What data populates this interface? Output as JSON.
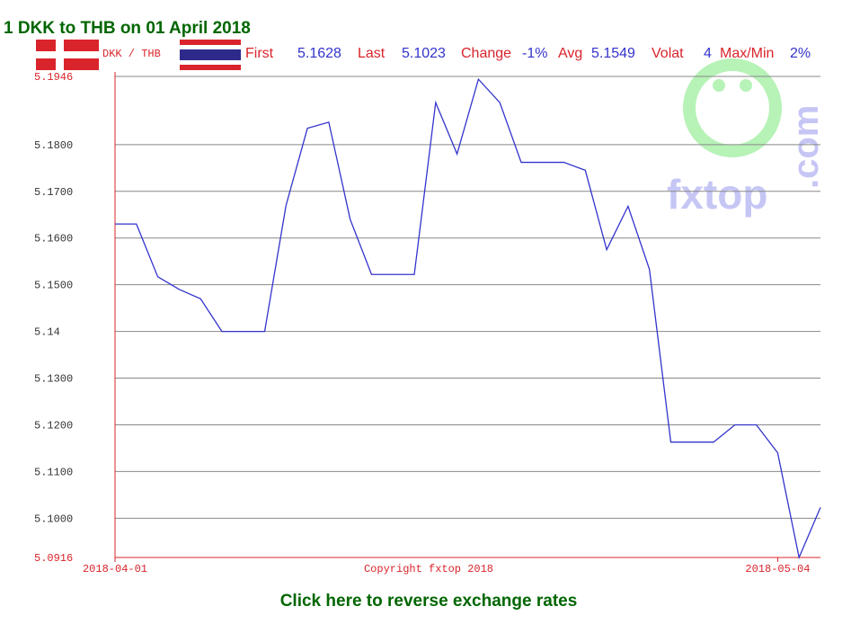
{
  "chart_data": {
    "type": "line",
    "title": "1 DKK to THB on 01 April 2018",
    "pair": "DKK / THB",
    "stats": [
      {
        "label": "First",
        "value": "5.1628"
      },
      {
        "label": "Last",
        "value": "5.1023"
      },
      {
        "label": "Change",
        "value": "-1%"
      },
      {
        "label": "Avg",
        "value": "5.1549"
      },
      {
        "label": "Volat",
        "value": "4"
      },
      {
        "label": "Max/Min",
        "value": "2%"
      }
    ],
    "categories": [
      "2018-04-01",
      null,
      null,
      null,
      null,
      null,
      null,
      null,
      null,
      null,
      null,
      null,
      null,
      null,
      null,
      null,
      null,
      null,
      null,
      null,
      null,
      null,
      null,
      null,
      null,
      null,
      null,
      null,
      null,
      null,
      null,
      "2018-05-04",
      null,
      null
    ],
    "series": [
      {
        "name": "DKK / THB",
        "color": "#3333cc",
        "values": [
          5.163,
          5.163,
          5.1517,
          5.149,
          5.147,
          5.14,
          5.14,
          5.14,
          5.167,
          5.1835,
          5.1848,
          5.164,
          5.1522,
          5.1522,
          5.1522,
          5.189,
          5.178,
          5.194,
          5.189,
          5.1762,
          5.1762,
          5.1762,
          5.1745,
          5.1575,
          5.1668,
          5.1533,
          5.1163,
          5.1163,
          5.1163,
          5.12,
          5.12,
          5.114,
          5.0916,
          5.1023
        ]
      }
    ],
    "ylim": [
      5.0916,
      5.1946
    ],
    "yticks": [
      5.0916,
      {
        "value": 5.1,
        "label": "5.1000"
      },
      {
        "value": 5.11,
        "label": "5.1100"
      },
      {
        "value": 5.12,
        "label": "5.1200"
      },
      {
        "value": 5.13,
        "label": "5.1300"
      },
      5.14,
      {
        "value": 5.15,
        "label": "5.1500"
      },
      {
        "value": 5.16,
        "label": "5.1600"
      },
      {
        "value": 5.17,
        "label": "5.1700"
      },
      {
        "value": 5.18,
        "label": "5.1800"
      },
      5.1946
    ],
    "grid": true,
    "copyright": "Copyright fxtop 2018",
    "logo": "fxtop",
    "logo_suffix": ".com",
    "link": "Click here to reverse exchange rates"
  }
}
